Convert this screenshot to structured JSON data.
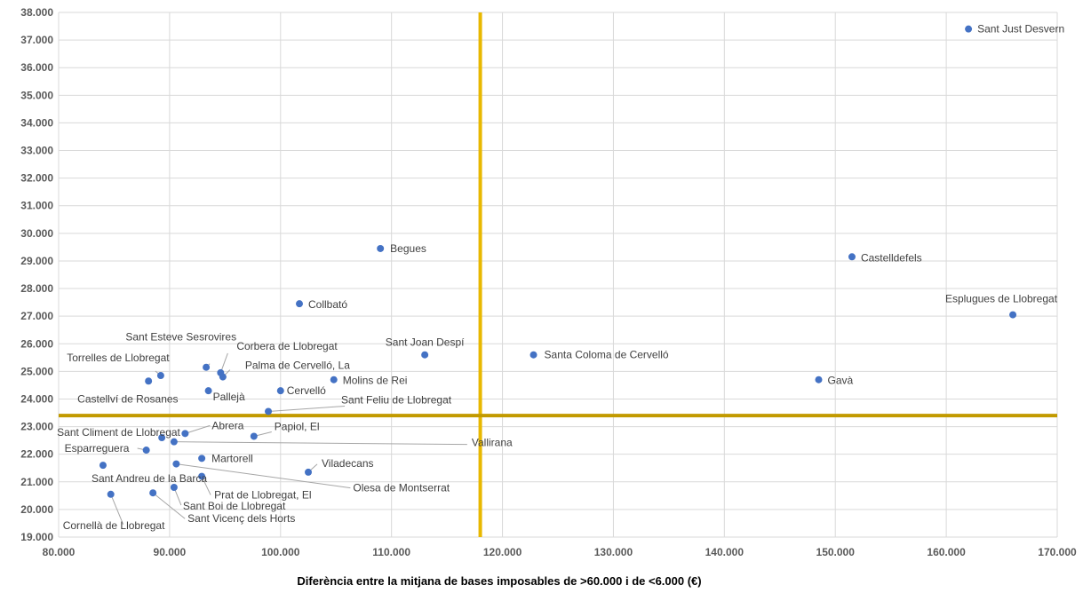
{
  "chart_data": {
    "type": "scatter",
    "title": "",
    "xlabel": "Diferència entre la mitjana de bases imposables de  >60.000 i de <6.000 (€)",
    "ylabel": "",
    "xlim": [
      80000,
      170000
    ],
    "ylim": [
      19000,
      38000
    ],
    "xticks": [
      80000,
      90000,
      100000,
      110000,
      120000,
      130000,
      140000,
      150000,
      160000,
      170000
    ],
    "xtick_labels": [
      "80.000",
      "90.000",
      "100.000",
      "110.000",
      "120.000",
      "130.000",
      "140.000",
      "150.000",
      "160.000",
      "170.000"
    ],
    "yticks": [
      19000,
      20000,
      21000,
      22000,
      23000,
      24000,
      25000,
      26000,
      27000,
      28000,
      29000,
      30000,
      31000,
      32000,
      33000,
      34000,
      35000,
      36000,
      37000,
      38000
    ],
    "ytick_labels": [
      "19.000",
      "20.000",
      "21.000",
      "22.000",
      "23.000",
      "24.000",
      "25.000",
      "26.000",
      "27.000",
      "28.000",
      "29.000",
      "30.000",
      "31.000",
      "32.000",
      "33.000",
      "34.000",
      "35.000",
      "36.000",
      "37.000",
      "38.000"
    ],
    "grid": true,
    "reference_lines": {
      "x": 118000,
      "y": 23400,
      "color": "#E8B800",
      "horizontal_color": "#C29A00"
    },
    "marker_color": "#4472C4",
    "points": [
      {
        "label": "Sant Just Desvern",
        "x": 162000,
        "y": 37400
      },
      {
        "label": "Castelldefels",
        "x": 151500,
        "y": 29150
      },
      {
        "label": "Esplugues de Llobregat",
        "x": 166000,
        "y": 27050
      },
      {
        "label": "Gavà",
        "x": 148500,
        "y": 24700
      },
      {
        "label": "Santa Coloma de Cervelló",
        "x": 122800,
        "y": 25600
      },
      {
        "label": "Sant Joan Despí",
        "x": 113000,
        "y": 25600
      },
      {
        "label": "Begues",
        "x": 109000,
        "y": 29450
      },
      {
        "label": "Collbató",
        "x": 101700,
        "y": 27450
      },
      {
        "label": "Molins de Rei",
        "x": 104800,
        "y": 24700
      },
      {
        "label": "Cervelló",
        "x": 100000,
        "y": 24300
      },
      {
        "label": "Sant Feliu de Llobregat",
        "x": 98900,
        "y": 23550
      },
      {
        "label": "Sant Esteve Sesrovires",
        "x": 93300,
        "y": 25150
      },
      {
        "label": "Corbera de Llobregat",
        "x": 94600,
        "y": 24950
      },
      {
        "label": "Palma de Cervelló, La",
        "x": 94800,
        "y": 24800
      },
      {
        "label": "Torrelles de Llobregat",
        "x": 89200,
        "y": 24850
      },
      {
        "label": "Castellví de Rosanes",
        "x": 88100,
        "y": 24650
      },
      {
        "label": "Pallejà",
        "x": 93500,
        "y": 24300
      },
      {
        "label": "Sant Climent de Llobregat",
        "x": 89300,
        "y": 22600
      },
      {
        "label": "Abrera",
        "x": 91400,
        "y": 22750
      },
      {
        "label": "Papiol, El",
        "x": 97600,
        "y": 22650
      },
      {
        "label": "Vallirana",
        "x": 90400,
        "y": 22450
      },
      {
        "label": "Esparreguera",
        "x": 87900,
        "y": 22150
      },
      {
        "label": "Martorell",
        "x": 92900,
        "y": 21850
      },
      {
        "label": "Viladecans",
        "x": 102500,
        "y": 21350
      },
      {
        "label": "Olesa de Montserrat",
        "x": 90600,
        "y": 21650
      },
      {
        "label": "Prat de Llobregat, El",
        "x": 92900,
        "y": 21200
      },
      {
        "label": "Sant Andreu de la Barca",
        "x": 84000,
        "y": 21600
      },
      {
        "label": "Sant Boi de Llobregat",
        "x": 90400,
        "y": 20800
      },
      {
        "label": "Sant Vicenç dels Horts",
        "x": 88500,
        "y": 20600
      },
      {
        "label": "Cornellà de Llobregat",
        "x": 84700,
        "y": 20550
      }
    ]
  }
}
